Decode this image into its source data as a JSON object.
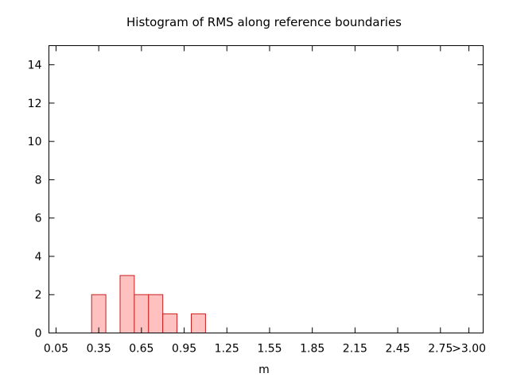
{
  "chart_data": {
    "type": "bar",
    "title": "Histogram of RMS along reference boundaries",
    "xlabel": "m",
    "ylabel": "",
    "bin_width": 0.1,
    "bins": [
      {
        "start": 0.3,
        "count": 2
      },
      {
        "start": 0.5,
        "count": 3
      },
      {
        "start": 0.6,
        "count": 2
      },
      {
        "start": 0.7,
        "count": 2
      },
      {
        "start": 0.8,
        "count": 1
      },
      {
        "start": 1.0,
        "count": 1
      }
    ],
    "xlim": [
      0.0,
      3.05
    ],
    "ylim": [
      0,
      15
    ],
    "x_ticks": [
      {
        "value": 0.05,
        "label": "0.05"
      },
      {
        "value": 0.35,
        "label": "0.35"
      },
      {
        "value": 0.65,
        "label": "0.65"
      },
      {
        "value": 0.95,
        "label": "0.95"
      },
      {
        "value": 1.25,
        "label": "1.25"
      },
      {
        "value": 1.55,
        "label": "1.55"
      },
      {
        "value": 1.85,
        "label": "1.85"
      },
      {
        "value": 2.15,
        "label": "2.15"
      },
      {
        "value": 2.45,
        "label": "2.45"
      },
      {
        "value": 2.75,
        "label": "2.75"
      },
      {
        "value": 2.95,
        "label": ">3.00"
      }
    ],
    "y_ticks": [
      {
        "value": 0,
        "label": "0"
      },
      {
        "value": 2,
        "label": "2"
      },
      {
        "value": 4,
        "label": "4"
      },
      {
        "value": 6,
        "label": "6"
      },
      {
        "value": 8,
        "label": "8"
      },
      {
        "value": 10,
        "label": "10"
      },
      {
        "value": 12,
        "label": "12"
      },
      {
        "value": 14,
        "label": "14"
      }
    ],
    "grid": false,
    "bar_fill": "#ffc0c0",
    "bar_stroke": "#c81e1e"
  }
}
